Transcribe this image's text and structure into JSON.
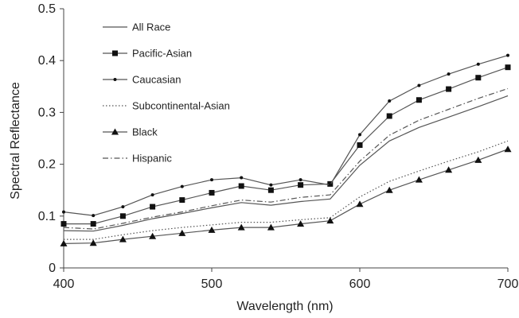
{
  "chart_data": {
    "type": "line",
    "title": "",
    "xlabel": "Wavelength (nm)",
    "ylabel": "Spectral Reflectance",
    "xlim": [
      400,
      700
    ],
    "ylim": [
      0,
      0.5
    ],
    "xticks": [
      400,
      500,
      600,
      700
    ],
    "yticks": [
      0,
      0.1,
      0.2,
      0.3,
      0.4,
      0.5
    ],
    "xtick_labels": [
      "400",
      "500",
      "600",
      "700"
    ],
    "ytick_labels": [
      "0",
      "0.1",
      "0.2",
      "0.3",
      "0.4",
      "0.5"
    ],
    "grid": false,
    "legend_position": "top-left",
    "x": [
      400,
      420,
      440,
      460,
      480,
      500,
      520,
      540,
      560,
      580,
      600,
      620,
      640,
      660,
      680,
      700
    ],
    "series": [
      {
        "name": "All Race",
        "marker": "none",
        "dash": "solid",
        "values": [
          0.072,
          0.071,
          0.082,
          0.095,
          0.105,
          0.116,
          0.126,
          0.121,
          0.128,
          0.133,
          0.198,
          0.245,
          0.271,
          0.291,
          0.311,
          0.332
        ]
      },
      {
        "name": "Pacific-Asian",
        "marker": "square",
        "dash": "solid",
        "values": [
          0.085,
          0.085,
          0.1,
          0.118,
          0.131,
          0.145,
          0.158,
          0.15,
          0.16,
          0.162,
          0.237,
          0.293,
          0.324,
          0.345,
          0.367,
          0.387
        ]
      },
      {
        "name": "Caucasian",
        "marker": "dot",
        "dash": "solid",
        "values": [
          0.108,
          0.101,
          0.118,
          0.141,
          0.157,
          0.17,
          0.174,
          0.16,
          0.17,
          0.16,
          0.257,
          0.322,
          0.352,
          0.374,
          0.393,
          0.41
        ]
      },
      {
        "name": "Subcontinental-Asian",
        "marker": "none",
        "dash": "dotted",
        "values": [
          0.055,
          0.055,
          0.064,
          0.072,
          0.078,
          0.083,
          0.088,
          0.088,
          0.093,
          0.097,
          0.137,
          0.167,
          0.187,
          0.206,
          0.224,
          0.245
        ]
      },
      {
        "name": "Black",
        "marker": "triangle",
        "dash": "solid",
        "values": [
          0.047,
          0.048,
          0.055,
          0.061,
          0.067,
          0.073,
          0.078,
          0.078,
          0.085,
          0.091,
          0.123,
          0.15,
          0.17,
          0.189,
          0.208,
          0.229
        ]
      },
      {
        "name": "Hispanic",
        "marker": "none",
        "dash": "dashdot",
        "values": [
          0.078,
          0.075,
          0.086,
          0.098,
          0.108,
          0.12,
          0.131,
          0.127,
          0.136,
          0.141,
          0.206,
          0.256,
          0.285,
          0.306,
          0.327,
          0.346
        ]
      }
    ]
  },
  "colors": {
    "line": "#555555",
    "marker": "#111111",
    "axis": "#444444"
  }
}
